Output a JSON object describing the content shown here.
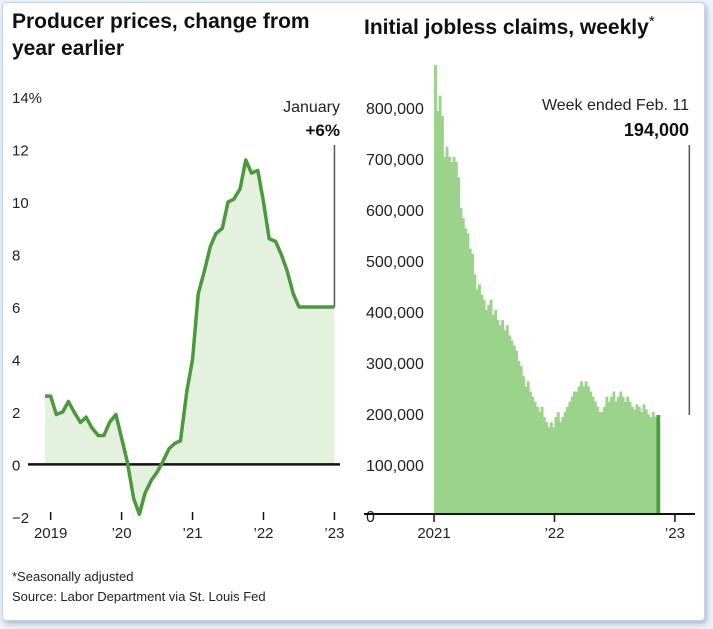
{
  "left_title": "Producer prices, change from year earlier",
  "right_title": "Initial jobless claims, weekly",
  "right_title_mark": "*",
  "footnote": "*Seasonally adjusted",
  "source": "Source: Labor Department via St. Louis Fed",
  "colors": {
    "line": "#4a9a3b",
    "area": "#e4f1df",
    "bar": "#9bd38b",
    "bar_last": "#49a13c",
    "axis": "#111111",
    "marker": "#555555"
  },
  "chart_data": [
    {
      "type": "area",
      "title": "Producer prices, change from year earlier",
      "ylim": [
        -2.5,
        14
      ],
      "yticks": [
        -2,
        0,
        2,
        4,
        6,
        8,
        10,
        12,
        14
      ],
      "ytick_labels": [
        "−2",
        "0",
        "2",
        "4",
        "6",
        "8",
        "10",
        "12",
        "14%"
      ],
      "xlim": [
        2018.85,
        2023.05
      ],
      "xticks": [
        2019,
        2020,
        2021,
        2022,
        2023
      ],
      "xtick_labels": [
        "2019",
        "’20",
        "’21",
        "’22",
        "’23"
      ],
      "grid": false,
      "annotation": {
        "label": "January",
        "value_label": "+6%",
        "x": 2023.0,
        "y": 6.0
      },
      "series": [
        {
          "x": [
            2018.92,
            2019.0,
            2019.08,
            2019.17,
            2019.25,
            2019.33,
            2019.42,
            2019.5,
            2019.58,
            2019.67,
            2019.75,
            2019.83,
            2019.92,
            2020.0,
            2020.08,
            2020.17,
            2020.25,
            2020.33,
            2020.42,
            2020.5,
            2020.58,
            2020.67,
            2020.75,
            2020.83,
            2020.92,
            2021.0,
            2021.08,
            2021.17,
            2021.25,
            2021.33,
            2021.42,
            2021.5,
            2021.58,
            2021.67,
            2021.75,
            2021.83,
            2021.92,
            2022.0,
            2022.08,
            2022.17,
            2022.25,
            2022.33,
            2022.42,
            2022.5,
            2022.58,
            2022.67,
            2022.75,
            2022.83,
            2022.92,
            2023.0
          ],
          "y": [
            2.6,
            2.6,
            1.9,
            2.0,
            2.4,
            2.0,
            1.6,
            1.8,
            1.4,
            1.1,
            1.1,
            1.6,
            1.9,
            1.0,
            0.1,
            -1.3,
            -1.9,
            -1.1,
            -0.6,
            -0.3,
            0.1,
            0.6,
            0.8,
            0.9,
            2.8,
            4.0,
            6.5,
            7.4,
            8.3,
            8.8,
            9.0,
            10.0,
            10.1,
            10.5,
            11.6,
            11.1,
            11.2,
            10.0,
            8.6,
            8.5,
            8.0,
            7.4,
            6.5,
            6.0,
            6.0,
            6.0,
            6.0,
            6.0,
            6.0,
            6.0
          ]
        }
      ]
    },
    {
      "type": "bar",
      "title": "Initial jobless claims, weekly",
      "ylim": [
        0,
        880000
      ],
      "yticks": [
        0,
        100000,
        200000,
        300000,
        400000,
        500000,
        600000,
        700000,
        800000
      ],
      "ytick_labels": [
        "0",
        "100,000",
        "200,000",
        "300,000",
        "400,000",
        "500,000",
        "600,000",
        "700,000",
        "800,000"
      ],
      "xlim": [
        2020.95,
        2023.15
      ],
      "xticks": [
        2021,
        2022,
        2023
      ],
      "xtick_labels": [
        "2021",
        "’22",
        "’23"
      ],
      "grid": false,
      "annotation": {
        "label": "Week ended Feb. 11",
        "value_label": "194,000",
        "x": 2023.11,
        "y": 194000
      },
      "series": [
        {
          "x_start": 2021.0,
          "week_step": 0.019231,
          "values": [
            880000,
            790000,
            820000,
            780000,
            700000,
            720000,
            700000,
            690000,
            700000,
            690000,
            660000,
            600000,
            580000,
            560000,
            550000,
            520000,
            510000,
            470000,
            440000,
            450000,
            430000,
            420000,
            400000,
            410000,
            420000,
            390000,
            400000,
            380000,
            370000,
            380000,
            360000,
            370000,
            350000,
            340000,
            330000,
            320000,
            300000,
            290000,
            270000,
            250000,
            260000,
            240000,
            230000,
            220000,
            210000,
            200000,
            210000,
            190000,
            180000,
            170000,
            180000,
            170000,
            190000,
            200000,
            180000,
            190000,
            200000,
            210000,
            220000,
            230000,
            240000,
            240000,
            250000,
            260000,
            250000,
            260000,
            250000,
            240000,
            230000,
            220000,
            210000,
            200000,
            200000,
            210000,
            230000,
            220000,
            230000,
            240000,
            220000,
            230000,
            240000,
            230000,
            220000,
            230000,
            220000,
            210000,
            205000,
            215000,
            210000,
            200000,
            215000,
            205000,
            195000,
            190000,
            200000,
            190000,
            194000
          ]
        }
      ]
    }
  ]
}
